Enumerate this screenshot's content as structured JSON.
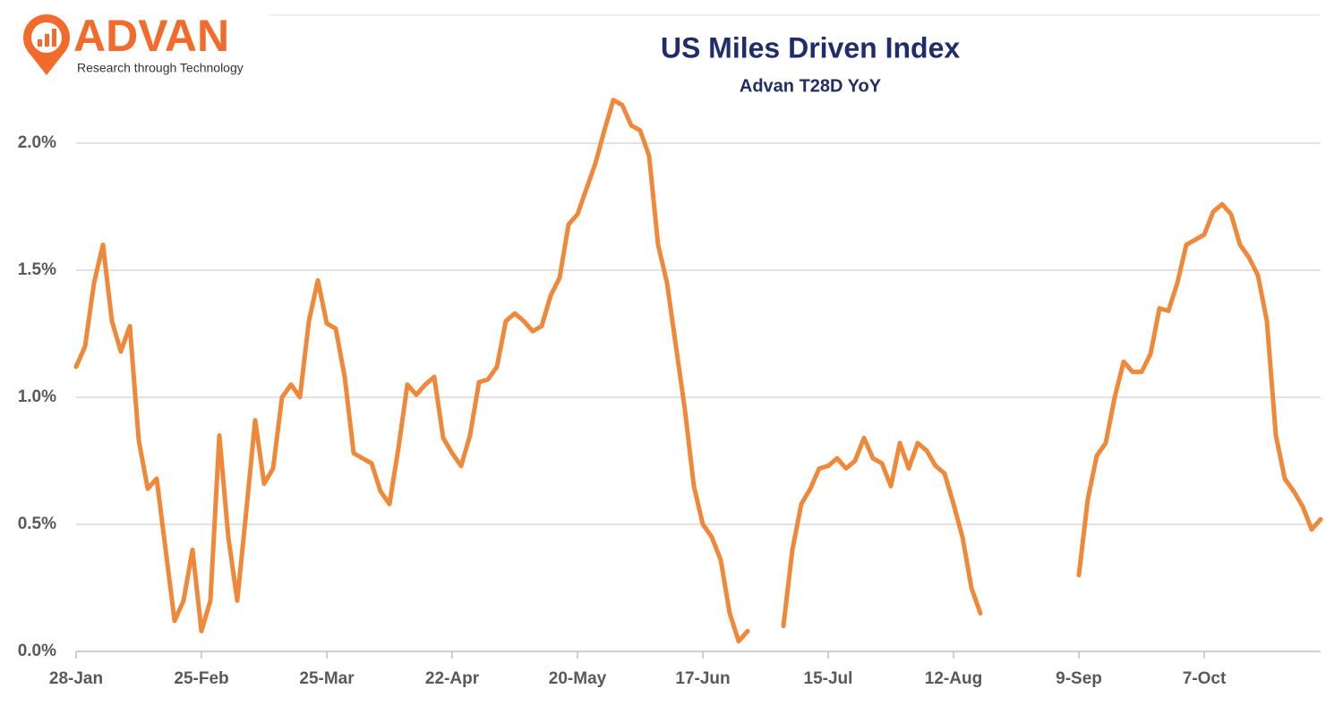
{
  "logo": {
    "name": "ADVAN",
    "tagline": "Research through Technology"
  },
  "chart_data": {
    "type": "line",
    "title": "US Miles Driven Index",
    "subtitle": "Advan T28D YoY",
    "categories": [
      "28-Jan",
      null,
      null,
      null,
      null,
      null,
      null,
      null,
      null,
      null,
      null,
      null,
      null,
      null,
      "25-Feb",
      null,
      null,
      null,
      null,
      null,
      null,
      null,
      null,
      null,
      null,
      null,
      null,
      null,
      "25-Mar",
      null,
      null,
      null,
      null,
      null,
      null,
      null,
      null,
      null,
      null,
      null,
      null,
      null,
      "22-Apr",
      null,
      null,
      null,
      null,
      null,
      null,
      null,
      null,
      null,
      null,
      null,
      null,
      null,
      "20-May",
      null,
      null,
      null,
      null,
      null,
      null,
      null,
      null,
      null,
      null,
      null,
      null,
      null,
      "17-Jun",
      null,
      null,
      null,
      null,
      null,
      null,
      null,
      null,
      null,
      null,
      null,
      null,
      null,
      "15-Jul",
      null,
      null,
      null,
      null,
      null,
      null,
      null,
      null,
      null,
      null,
      null,
      null,
      null,
      "12-Aug",
      null,
      null,
      null,
      null,
      null,
      null,
      null,
      null,
      null,
      null,
      null,
      null,
      null,
      "9-Sep",
      null,
      null,
      null,
      null,
      null,
      null,
      null,
      null,
      null,
      null,
      null,
      null,
      null,
      "7-Oct",
      null,
      null,
      null,
      null,
      null,
      null,
      null,
      null,
      null,
      null,
      null,
      null,
      null
    ],
    "series": [
      {
        "name": "Advan T28D YoY",
        "color": "#f0883a",
        "values": [
          1.12,
          1.2,
          1.45,
          1.6,
          1.3,
          1.18,
          1.28,
          0.83,
          0.64,
          0.68,
          0.4,
          0.12,
          0.2,
          0.4,
          0.08,
          0.2,
          0.85,
          0.45,
          0.2,
          0.55,
          0.91,
          0.66,
          0.72,
          1.0,
          1.05,
          1.0,
          1.3,
          1.46,
          1.29,
          1.27,
          1.08,
          0.78,
          0.76,
          0.74,
          0.63,
          0.58,
          0.8,
          1.05,
          1.01,
          1.05,
          1.08,
          0.84,
          0.78,
          0.73,
          0.85,
          1.06,
          1.07,
          1.12,
          1.3,
          1.33,
          1.3,
          1.26,
          1.28,
          1.4,
          1.47,
          1.68,
          1.72,
          1.82,
          1.92,
          2.05,
          2.17,
          2.15,
          2.07,
          2.05,
          1.95,
          1.6,
          1.45,
          1.2,
          0.95,
          0.65,
          0.5,
          0.45,
          0.36,
          0.15,
          0.04,
          0.08,
          null,
          null,
          null,
          0.1,
          0.4,
          0.58,
          0.64,
          0.72,
          0.73,
          0.76,
          0.72,
          0.75,
          0.84,
          0.76,
          0.74,
          0.65,
          0.82,
          0.72,
          0.82,
          0.79,
          0.73,
          0.7,
          0.58,
          0.45,
          0.25,
          0.15,
          null,
          null,
          null,
          null,
          null,
          null,
          null,
          null,
          null,
          null,
          0.3,
          0.6,
          0.77,
          0.82,
          1.0,
          1.14,
          1.1,
          1.1,
          1.17,
          1.35,
          1.34,
          1.45,
          1.6,
          1.62,
          1.64,
          1.73,
          1.76,
          1.72,
          1.6,
          1.55,
          1.48,
          1.3,
          0.85,
          0.68,
          0.63,
          0.57,
          0.48,
          0.52
        ]
      }
    ],
    "ylim": [
      0,
      2.5
    ],
    "yticks": [
      {
        "value": 0,
        "label": "0.0%"
      },
      {
        "value": 0.5,
        "label": "0.5%"
      },
      {
        "value": 1,
        "label": "1.0%"
      },
      {
        "value": 1.5,
        "label": "1.5%"
      },
      {
        "value": 2,
        "label": "2.0%"
      }
    ],
    "grid": true
  }
}
